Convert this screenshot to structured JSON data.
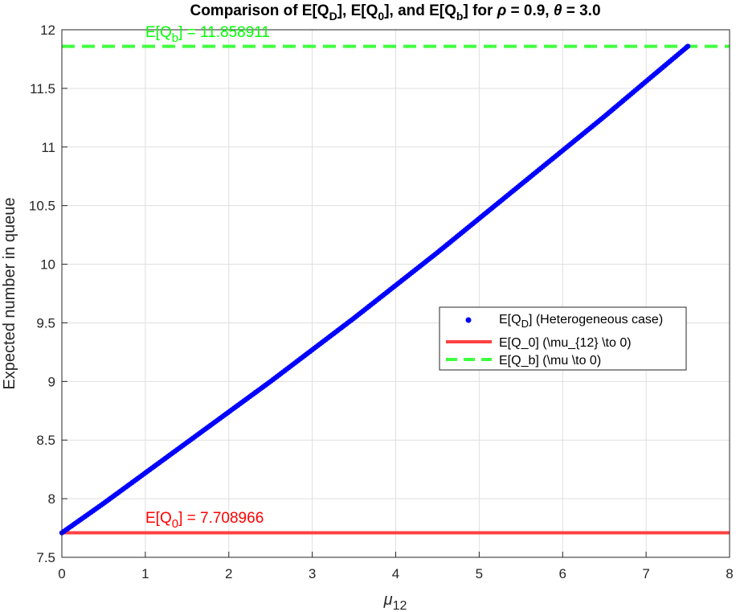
{
  "chart_data": {
    "type": "line",
    "title": {
      "p1": "Comparison of E[Q",
      "s1": "D",
      "p2": "], E[Q",
      "s2": "0",
      "p3": "], and E[Q",
      "s3": "b",
      "p4": "] for ",
      "rho": "ρ",
      "p5": " = 0.9, ",
      "theta": "θ",
      "p6": " = 3.0"
    },
    "xlabel": {
      "base": "μ",
      "sub": "12"
    },
    "ylabel": "Expected number in queue",
    "xlim": [
      0,
      8
    ],
    "ylim": [
      7.5,
      12
    ],
    "xticks": [
      "0",
      "1",
      "2",
      "3",
      "4",
      "5",
      "6",
      "7",
      "8"
    ],
    "yticks": [
      "7.5",
      "8",
      "8.5",
      "9",
      "9.5",
      "10",
      "10.5",
      "11",
      "11.5",
      "12"
    ],
    "grid": true,
    "legend_location": "east",
    "series": [
      {
        "name": {
          "pre": "E[Q",
          "sub": "D",
          "post": "] (Heterogeneous case)"
        },
        "style": "dots",
        "color": "#0000ff",
        "x": [
          0,
          0.5,
          1,
          1.5,
          2,
          2.5,
          3,
          3.5,
          4,
          4.5,
          5,
          5.5,
          6,
          6.5,
          7,
          7.5
        ],
        "y": [
          7.709,
          7.96,
          8.22,
          8.48,
          8.74,
          9.0,
          9.27,
          9.54,
          9.82,
          10.1,
          10.39,
          10.68,
          10.97,
          11.26,
          11.56,
          11.859
        ]
      },
      {
        "name": "E[Q_0] (\\mu_{12} \\to 0)",
        "style": "solid",
        "color": "#ff4040",
        "value": 7.708966
      },
      {
        "name": "E[Q_b] (\\mu \\to 0)",
        "style": "dashed",
        "color": "#40ff40",
        "value": 11.858911
      }
    ],
    "annotations": [
      {
        "pre": "E[Q",
        "sub": "b",
        "post": "] = 11.858911",
        "x": 1,
        "y": 11.858911,
        "color": "#00ff00"
      },
      {
        "pre": "E[Q",
        "sub": "0",
        "post": "] = 7.708966",
        "x": 1,
        "y": 7.708966,
        "color": "#ff0000"
      }
    ]
  }
}
